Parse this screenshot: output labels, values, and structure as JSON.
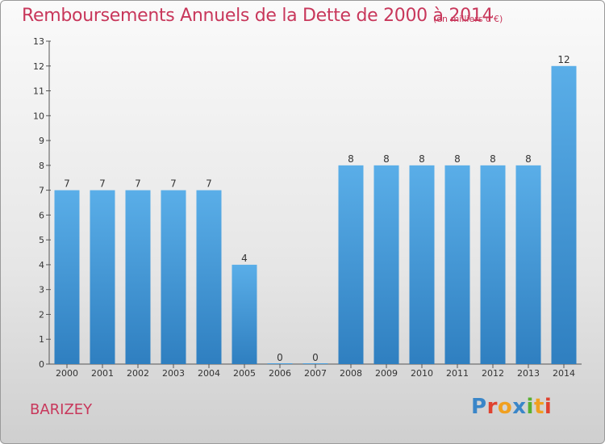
{
  "chart_data": {
    "type": "bar",
    "title": "Remboursements Annuels de la Dette de 2000 à 2014",
    "subtitle": "(en milliers d'€)",
    "categories": [
      "2000",
      "2001",
      "2002",
      "2003",
      "2004",
      "2005",
      "2006",
      "2007",
      "2008",
      "2009",
      "2010",
      "2011",
      "2012",
      "2013",
      "2014"
    ],
    "values": [
      7,
      7,
      7,
      7,
      7,
      4,
      0,
      0,
      8,
      8,
      8,
      8,
      8,
      8,
      12
    ],
    "ylim": [
      0,
      13
    ],
    "yticks": [
      0,
      1,
      2,
      3,
      4,
      5,
      6,
      7,
      8,
      9,
      10,
      11,
      12,
      13
    ],
    "bar_color": "#4d9fdc",
    "grid": false
  },
  "commune": "BARIZEY",
  "logo": {
    "text": "Proxiti",
    "letter_colors": [
      "#3a86c8",
      "#e0422f",
      "#f0a020",
      "#3a86c8",
      "#58b030",
      "#f0a020",
      "#e0422f"
    ]
  },
  "colors": {
    "title": "#c8375b"
  }
}
